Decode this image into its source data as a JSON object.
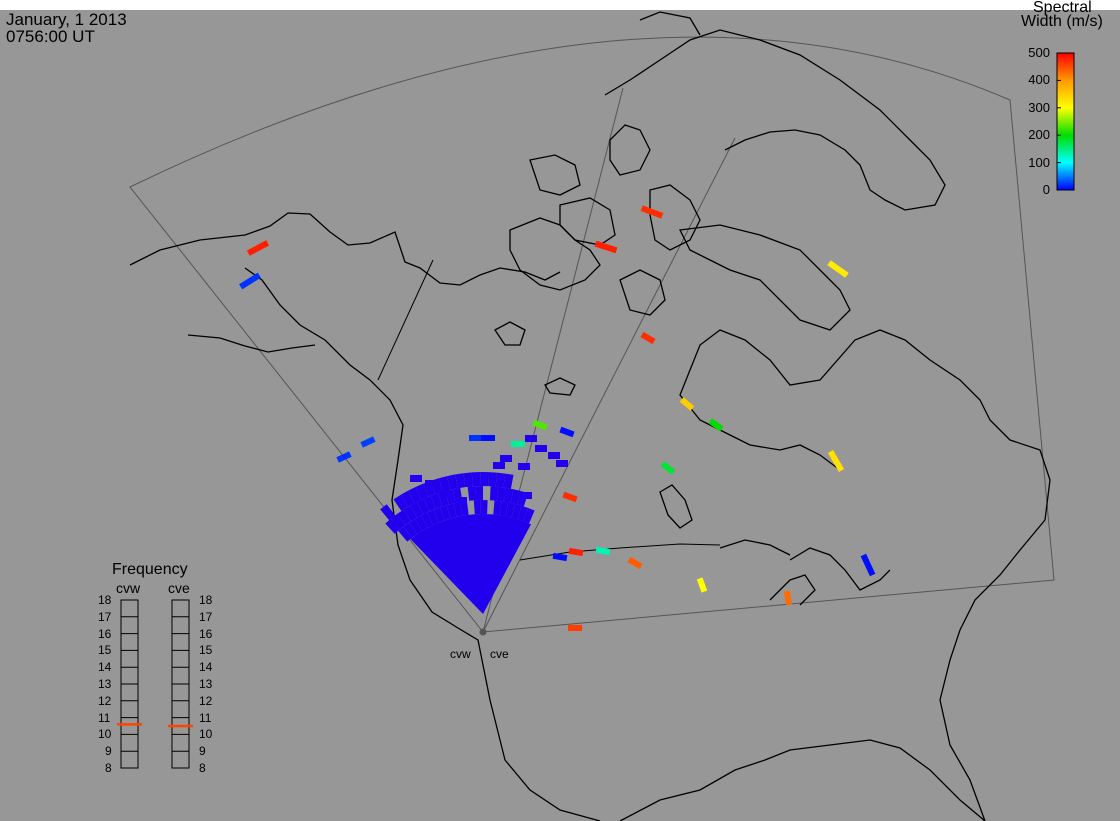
{
  "header": {
    "date": "January, 1 2013",
    "time": "0756:00 UT"
  },
  "colorbar": {
    "title_line1": "Spectral",
    "title_line2": "Width (m/s)",
    "ticks": [
      "500",
      "400",
      "300",
      "200",
      "100",
      "0"
    ],
    "min": 0,
    "max": 500,
    "stops": [
      "#ff0000",
      "#ff9900",
      "#ffff00",
      "#00dd00",
      "#00ffff",
      "#0000ff"
    ]
  },
  "frequency_panel": {
    "title": "Frequency",
    "radars": [
      "cvw",
      "cve"
    ],
    "levels": [
      "18",
      "17",
      "16",
      "15",
      "14",
      "13",
      "12",
      "11",
      "10",
      "9",
      "8"
    ],
    "current_frequency": [
      10.6,
      10.5
    ],
    "marker_color": "#ff4400"
  },
  "radar_sites": {
    "west_label": "cvw",
    "east_label": "cve"
  },
  "colors": {
    "background": "#979797",
    "coastline": "#000000",
    "fov_outline": "#555555",
    "scatter_main": "#2200ee"
  },
  "scatter_widths": [
    480,
    20,
    480,
    470,
    20,
    25,
    20,
    5,
    140,
    470,
    350,
    200,
    330,
    320,
    180,
    470,
    5,
    5,
    480,
    130,
    440,
    300,
    430,
    5,
    460,
    230
  ]
}
